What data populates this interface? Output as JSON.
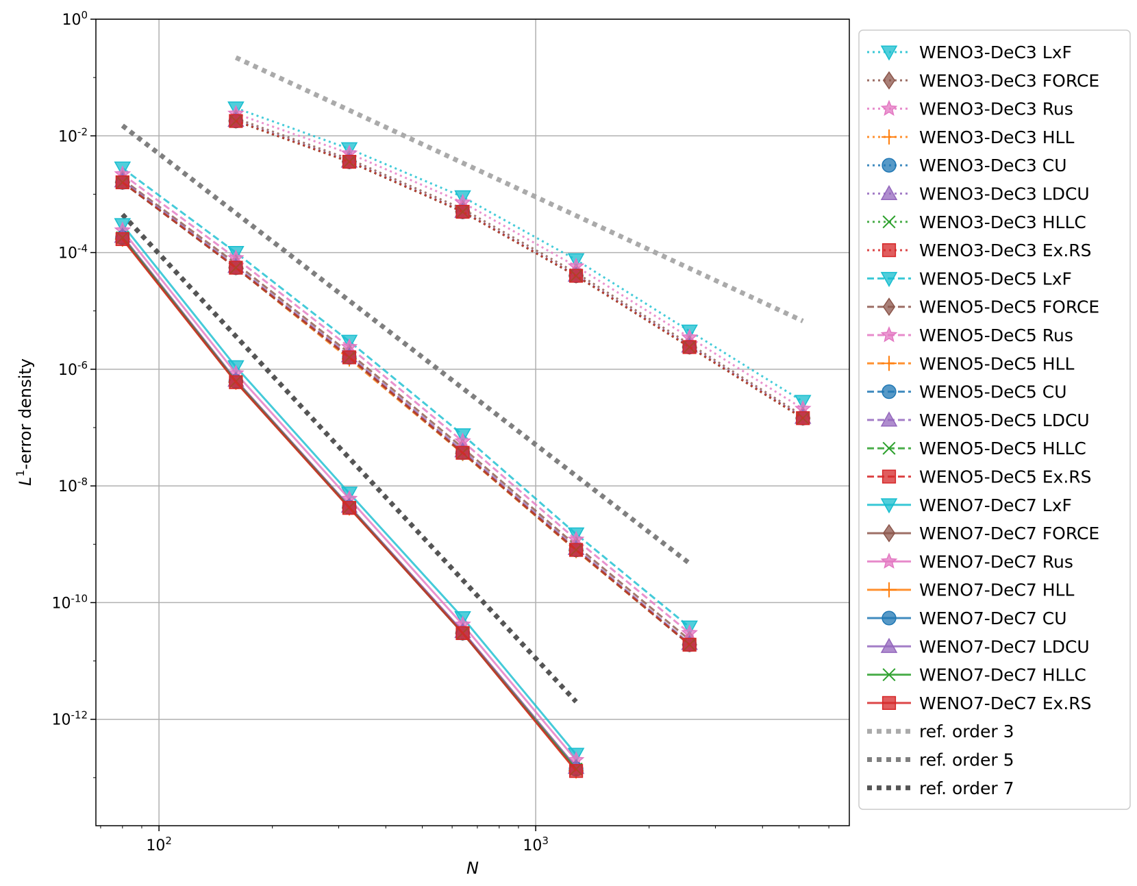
{
  "chart_data": {
    "type": "line",
    "xscale": "log",
    "yscale": "log",
    "xlim": [
      68,
      6800
    ],
    "ylim": [
      1.5e-14,
      1
    ],
    "xlabel": "N",
    "ylabel_main": "L",
    "ylabel_sup": "1",
    "ylabel_rest": "-error density",
    "grid": true,
    "legend_location": "right",
    "x_ticks": [
      {
        "value": 100,
        "base": "10",
        "exp": "2"
      },
      {
        "value": 1000,
        "base": "10",
        "exp": "3"
      }
    ],
    "y_ticks": [
      {
        "value": 1,
        "base": "10",
        "exp": "0"
      },
      {
        "value": 0.01,
        "base": "10",
        "exp": "-2"
      },
      {
        "value": 0.0001,
        "base": "10",
        "exp": "-4"
      },
      {
        "value": 1e-06,
        "base": "10",
        "exp": "-6"
      },
      {
        "value": 1e-08,
        "base": "10",
        "exp": "-8"
      },
      {
        "value": 1e-10,
        "base": "10",
        "exp": "-10"
      },
      {
        "value": 1e-12,
        "base": "10",
        "exp": "-12"
      }
    ],
    "series": [
      {
        "name": "WENO3-DeC3 LxF",
        "color": "#17becf",
        "dash": "dotted",
        "marker": "triangle-down",
        "x": [
          160,
          320,
          640,
          1280,
          2560,
          5120
        ],
        "values": [
          0.03,
          0.006,
          0.0009,
          7.5e-05,
          4.5e-06,
          2.8e-07
        ]
      },
      {
        "name": "WENO3-DeC3 FORCE",
        "color": "#8c564b",
        "dash": "dotted",
        "marker": "diamond",
        "x": [
          160,
          320,
          640,
          1280,
          2560,
          5120
        ],
        "values": [
          0.02,
          0.004,
          0.00056,
          4.5e-05,
          2.7e-06,
          1.6e-07
        ]
      },
      {
        "name": "WENO3-DeC3 Rus",
        "color": "#e377c2",
        "dash": "dotted",
        "marker": "star",
        "x": [
          160,
          320,
          640,
          1280,
          2560,
          5120
        ],
        "values": [
          0.024,
          0.005,
          0.00072,
          5.8e-05,
          3.5e-06,
          2.1e-07
        ]
      },
      {
        "name": "WENO3-DeC3 HLL",
        "color": "#ff7f0e",
        "dash": "dotted",
        "marker": "plus",
        "x": [
          160,
          320,
          640,
          1280,
          2560,
          5120
        ],
        "values": [
          0.018,
          0.0036,
          0.0005,
          4e-05,
          2.4e-06,
          1.45e-07
        ]
      },
      {
        "name": "WENO3-DeC3 CU",
        "color": "#1f77b4",
        "dash": "dotted",
        "marker": "circle",
        "x": [
          160,
          320,
          640,
          1280,
          2560,
          5120
        ],
        "values": [
          0.018,
          0.0036,
          0.0005,
          4e-05,
          2.4e-06,
          1.45e-07
        ]
      },
      {
        "name": "WENO3-DeC3 LDCU",
        "color": "#9467bd",
        "dash": "dotted",
        "marker": "triangle-up",
        "x": [
          160,
          320,
          640,
          1280,
          2560,
          5120
        ],
        "values": [
          0.0185,
          0.0037,
          0.00051,
          4.1e-05,
          2.5e-06,
          1.5e-07
        ]
      },
      {
        "name": "WENO3-DeC3 HLLC",
        "color": "#2ca02c",
        "dash": "dotted",
        "marker": "x",
        "x": [
          160,
          320,
          640,
          1280,
          2560,
          5120
        ],
        "values": [
          0.018,
          0.0036,
          0.0005,
          4e-05,
          2.4e-06,
          1.45e-07
        ]
      },
      {
        "name": "WENO3-DeC3 Ex.RS",
        "color": "#d62728",
        "dash": "dotted",
        "marker": "square",
        "x": [
          160,
          320,
          640,
          1280,
          2560,
          5120
        ],
        "values": [
          0.018,
          0.0036,
          0.0005,
          4e-05,
          2.4e-06,
          1.45e-07
        ]
      },
      {
        "name": "WENO5-DeC5 LxF",
        "color": "#17becf",
        "dash": "dashed",
        "marker": "triangle-down",
        "x": [
          80,
          160,
          320,
          640,
          1280,
          2560
        ],
        "values": [
          0.0028,
          0.0001,
          3e-06,
          7.5e-08,
          1.5e-09,
          3.8e-11
        ]
      },
      {
        "name": "WENO5-DeC5 FORCE",
        "color": "#8c564b",
        "dash": "dashed",
        "marker": "diamond",
        "x": [
          80,
          160,
          320,
          640,
          1280,
          2560
        ],
        "values": [
          0.0018,
          6.5e-05,
          1.9e-06,
          4.5e-08,
          9.5e-10,
          2.3e-11
        ]
      },
      {
        "name": "WENO5-DeC5 Rus",
        "color": "#e377c2",
        "dash": "dashed",
        "marker": "star",
        "x": [
          80,
          160,
          320,
          640,
          1280,
          2560
        ],
        "values": [
          0.0022,
          8e-05,
          2.4e-06,
          5.8e-08,
          1.2e-09,
          3e-11
        ]
      },
      {
        "name": "WENO5-DeC5 HLL",
        "color": "#ff7f0e",
        "dash": "dashed",
        "marker": "plus",
        "x": [
          80,
          160,
          320,
          640,
          1280,
          2560
        ],
        "values": [
          0.0016,
          5.5e-05,
          1.5e-06,
          3.6e-08,
          7.8e-10,
          1.9e-11
        ]
      },
      {
        "name": "WENO5-DeC5 CU",
        "color": "#1f77b4",
        "dash": "dashed",
        "marker": "circle",
        "x": [
          80,
          160,
          320,
          640,
          1280,
          2560
        ],
        "values": [
          0.0016,
          5.5e-05,
          1.6e-06,
          3.7e-08,
          8e-10,
          1.9e-11
        ]
      },
      {
        "name": "WENO5-DeC5 LDCU",
        "color": "#9467bd",
        "dash": "dashed",
        "marker": "triangle-up",
        "x": [
          80,
          160,
          320,
          640,
          1280,
          2560
        ],
        "values": [
          0.0017,
          5.8e-05,
          1.7e-06,
          4e-08,
          8.5e-10,
          2e-11
        ]
      },
      {
        "name": "WENO5-DeC5 HLLC",
        "color": "#2ca02c",
        "dash": "dashed",
        "marker": "x",
        "x": [
          80,
          160,
          320,
          640,
          1280,
          2560
        ],
        "values": [
          0.0016,
          5.5e-05,
          1.6e-06,
          3.7e-08,
          8e-10,
          1.9e-11
        ]
      },
      {
        "name": "WENO5-DeC5 Ex.RS",
        "color": "#d62728",
        "dash": "dashed",
        "marker": "square",
        "x": [
          80,
          160,
          320,
          640,
          1280,
          2560
        ],
        "values": [
          0.0016,
          5.5e-05,
          1.6e-06,
          3.7e-08,
          8e-10,
          1.9e-11
        ]
      },
      {
        "name": "WENO7-DeC7 LxF",
        "color": "#17becf",
        "dash": "solid",
        "marker": "triangle-down",
        "x": [
          80,
          160,
          320,
          640,
          1280
        ],
        "values": [
          0.0003,
          1.1e-06,
          7.5e-09,
          5.5e-11,
          2.5e-13
        ]
      },
      {
        "name": "WENO7-DeC7 FORCE",
        "color": "#8c564b",
        "dash": "solid",
        "marker": "diamond",
        "x": [
          80,
          160,
          320,
          640,
          1280
        ],
        "values": [
          0.00019,
          6.5e-07,
          4.5e-09,
          3.2e-11,
          1.5e-13
        ]
      },
      {
        "name": "WENO7-DeC7 Rus",
        "color": "#e377c2",
        "dash": "solid",
        "marker": "star",
        "x": [
          80,
          160,
          320,
          640,
          1280
        ],
        "values": [
          0.00024,
          8.5e-07,
          6e-09,
          4.2e-11,
          2e-13
        ]
      },
      {
        "name": "WENO7-DeC7 HLL",
        "color": "#ff7f0e",
        "dash": "solid",
        "marker": "plus",
        "x": [
          80,
          160,
          320,
          640,
          1280
        ],
        "values": [
          0.00017,
          6e-07,
          4.2e-09,
          3e-11,
          1.3e-13
        ]
      },
      {
        "name": "WENO7-DeC7 CU",
        "color": "#1f77b4",
        "dash": "solid",
        "marker": "circle",
        "x": [
          80,
          160,
          320,
          640,
          1280
        ],
        "values": [
          0.00018,
          6.2e-07,
          4.3e-09,
          3e-11,
          1.4e-13
        ]
      },
      {
        "name": "WENO7-DeC7 LDCU",
        "color": "#9467bd",
        "dash": "solid",
        "marker": "triangle-up",
        "x": [
          80,
          160,
          320,
          640,
          1280
        ],
        "values": [
          0.00019,
          6.5e-07,
          4.5e-09,
          3.2e-11,
          1.5e-13
        ]
      },
      {
        "name": "WENO7-DeC7 HLLC",
        "color": "#2ca02c",
        "dash": "solid",
        "marker": "x",
        "x": [
          80,
          160,
          320,
          640,
          1280
        ],
        "values": [
          0.00018,
          6.2e-07,
          4.3e-09,
          3e-11,
          1.4e-13
        ]
      },
      {
        "name": "WENO7-DeC7 Ex.RS",
        "color": "#d62728",
        "dash": "solid",
        "marker": "square",
        "x": [
          80,
          160,
          320,
          640,
          1280
        ],
        "values": [
          0.00017,
          6e-07,
          4.2e-09,
          3e-11,
          1.3e-13
        ]
      }
    ],
    "reference_lines": [
      {
        "name": "ref. order 3",
        "color": "#aaaaaa",
        "x": [
          160,
          5120
        ],
        "values": [
          0.22,
          6.7e-06
        ]
      },
      {
        "name": "ref. order 5",
        "color": "#7f7f7f",
        "x": [
          80,
          2560
        ],
        "values": [
          0.015,
          4.7e-10
        ]
      },
      {
        "name": "ref. order 7",
        "color": "#555555",
        "x": [
          80,
          1280
        ],
        "values": [
          0.00045,
          2e-12
        ]
      }
    ]
  }
}
